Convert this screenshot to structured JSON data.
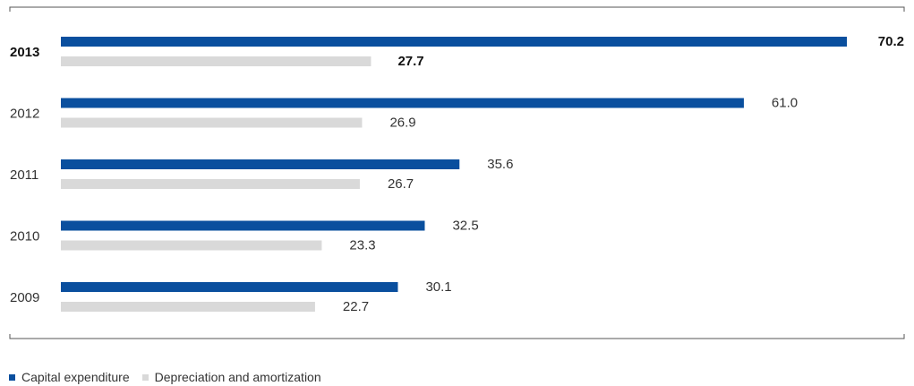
{
  "chart_data": {
    "type": "bar",
    "orientation": "horizontal",
    "categories": [
      "2013",
      "2012",
      "2011",
      "2010",
      "2009"
    ],
    "highlighted_category": "2013",
    "series": [
      {
        "name": "Capital expenditure",
        "color": "#0a4f9e",
        "values": [
          70.2,
          61.0,
          35.6,
          32.5,
          30.1
        ],
        "labels": [
          "70.2",
          "61.0",
          "35.6",
          "32.5",
          "30.1"
        ]
      },
      {
        "name": "Depreciation and amortization",
        "color": "#d9d9d9",
        "values": [
          27.7,
          26.9,
          26.7,
          23.3,
          22.7
        ],
        "labels": [
          "27.7",
          "26.9",
          "26.7",
          "23.3",
          "22.7"
        ]
      }
    ],
    "xlim": [
      0,
      70.2
    ],
    "grid": false,
    "legend_position": "bottom-left"
  }
}
